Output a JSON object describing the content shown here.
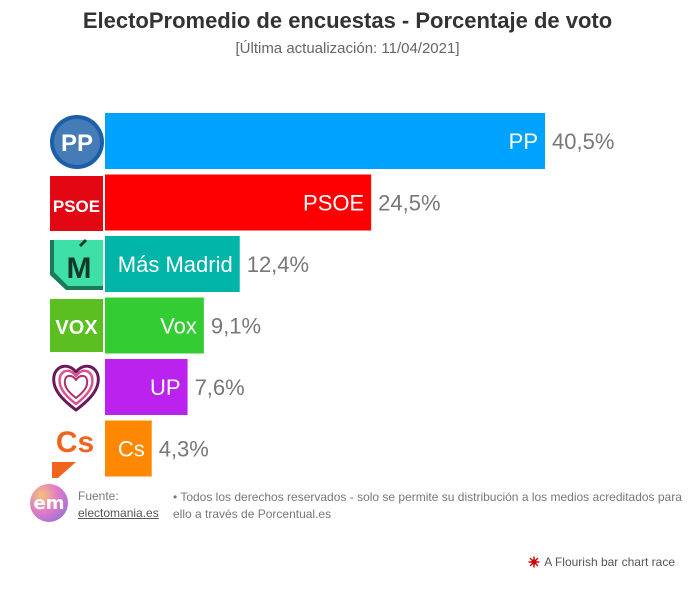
{
  "header": {
    "title": "ElectoPromedio de encuestas - Porcentaje de voto",
    "subtitle": "[Última actualización: 11/04/2021]"
  },
  "chart_data": {
    "type": "bar",
    "orientation": "horizontal",
    "categories": [
      "PP",
      "PSOE",
      "Más Madrid",
      "Vox",
      "UP",
      "Cs"
    ],
    "values": [
      40.5,
      24.5,
      12.4,
      9.1,
      7.6,
      4.3
    ],
    "value_labels": [
      "40,5%",
      "24,5%",
      "12,4%",
      "9,1%",
      "7,6%",
      "4,3%"
    ],
    "colors": [
      "#00a2ff",
      "#ff0000",
      "#00b4a8",
      "#33cc33",
      "#bb22ee",
      "#ff8800"
    ],
    "xlim": [
      0,
      40.5
    ],
    "grid": false,
    "legend": "none"
  },
  "logos": {
    "pp": "PP",
    "psoe": "PSOE",
    "mas_madrid": "M",
    "vox": "VOX",
    "cs": "Cs"
  },
  "footer": {
    "brand_logo": "em",
    "source_label": "Fuente:",
    "source_link": "electomania.es",
    "rights": "• Todos los derechos reservados - solo se permite su distribución a los medios acreditados para ello a través de Porcentual.es",
    "flourish": "A Flourish bar chart race",
    "flourish_color": "#cc0000"
  }
}
